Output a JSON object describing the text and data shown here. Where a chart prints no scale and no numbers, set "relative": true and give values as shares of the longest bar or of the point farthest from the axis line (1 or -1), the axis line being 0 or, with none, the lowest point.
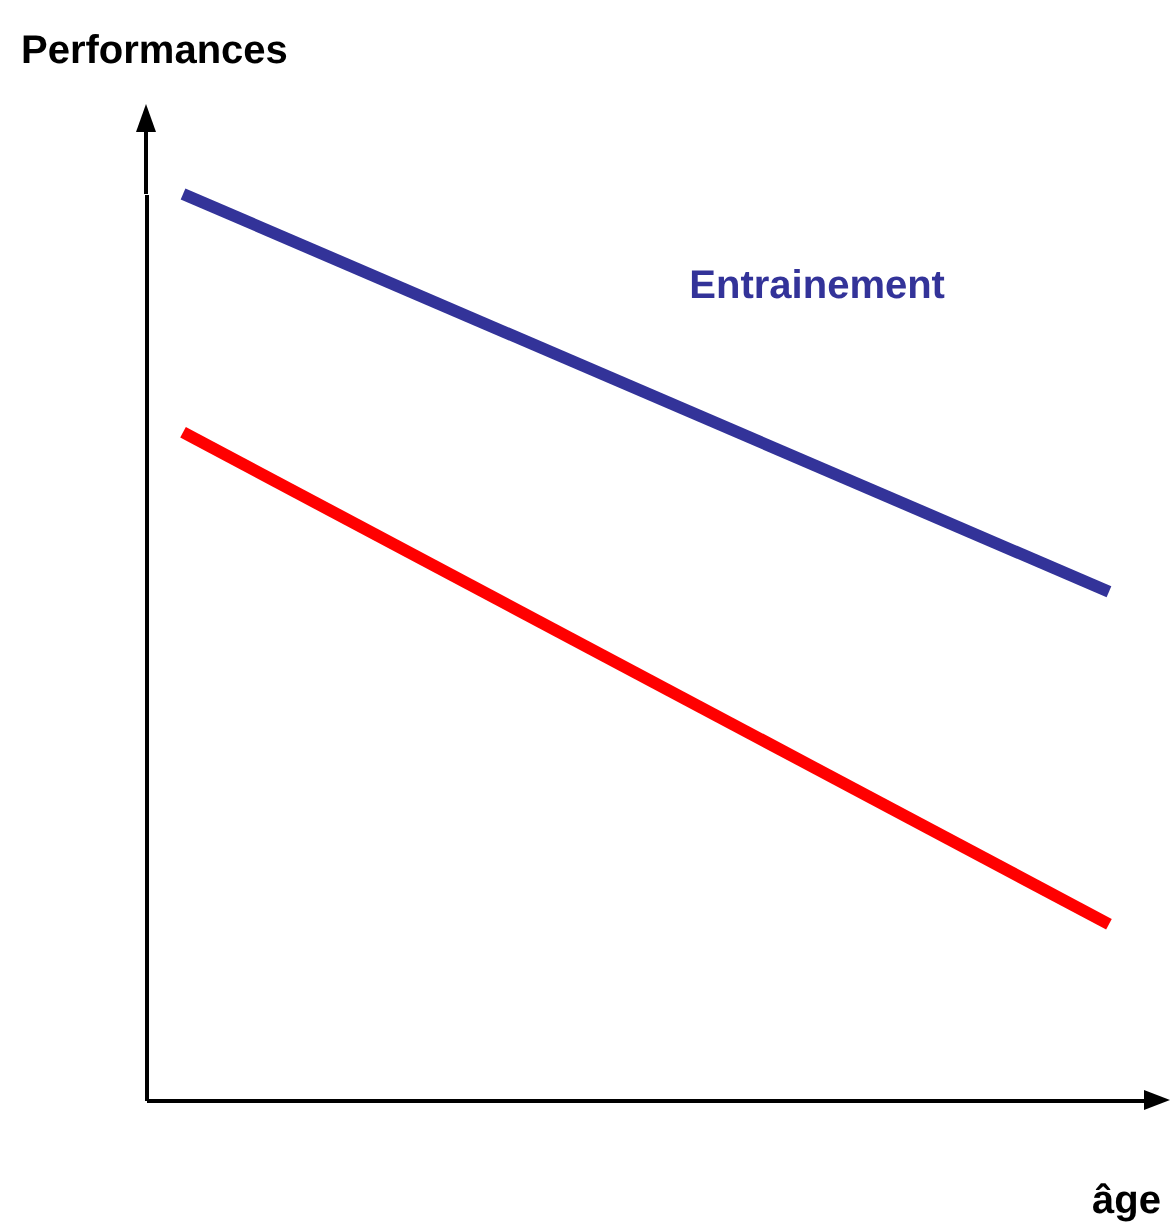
{
  "chart_data": {
    "type": "line",
    "xlabel": "âge",
    "ylabel": "Performances",
    "relative": true,
    "tick_labels": false,
    "categories": [
      null,
      null
    ],
    "series": [
      {
        "name": "Entrainement",
        "color": "#333399",
        "values": [
          1,
          0.561
        ]
      },
      {
        "color": "#ff0000",
        "values": [
          0.737,
          0.194
        ]
      }
    ]
  }
}
